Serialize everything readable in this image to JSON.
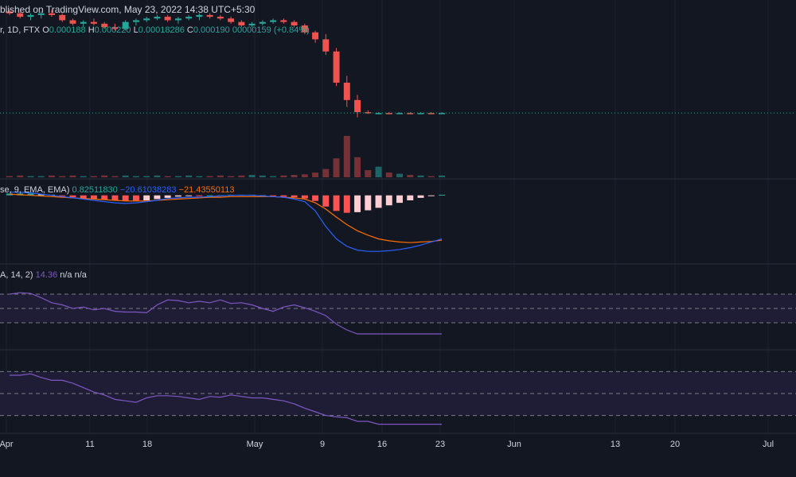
{
  "header": {
    "published": "blished on TradingView.com, May 23, 2022 14:38 UTC+5:30"
  },
  "price_legend": {
    "symbol": "r, 1D, FTX",
    "o_label": "O",
    "o_value": "0.000188",
    "h_label": "H",
    "h_value": "0.000220",
    "l_label": "L",
    "l_value": "0.00018286",
    "c_label": "C",
    "c_value": "0.000190",
    "change": "00000159 (+0.84%)"
  },
  "macd_legend": {
    "name": "se, 9, EMA, EMA)",
    "hist": "0.82511830",
    "macd": "−20.61038283",
    "signal": "−21.43550113"
  },
  "rsi_legend": {
    "name": "A, 14, 2)",
    "value": "14.36",
    "na1": "n/a",
    "na2": "n/a"
  },
  "colors": {
    "background": "#131722",
    "up": "#26a69a",
    "down": "#ef5350",
    "macd": "#2962ff",
    "signal": "#ff6d00",
    "rsi": "#7e57c2",
    "band": "#1f1d36"
  },
  "chart_data": [
    {
      "type": "candlestick",
      "x_axis_ticks": [
        "Apr",
        "11",
        "18",
        "May",
        "9",
        "16",
        "23",
        "Jun",
        "13",
        "20",
        "Jul"
      ],
      "candles": [
        {
          "o": 3,
          "h": 4,
          "l": 1,
          "c": 2
        },
        {
          "o": 2,
          "h": 3,
          "l": -1,
          "c": 0
        },
        {
          "o": 0,
          "h": 2,
          "l": -2,
          "c": 1
        },
        {
          "o": 1,
          "h": 3,
          "l": -1,
          "c": 2
        },
        {
          "o": 2,
          "h": 4,
          "l": 0,
          "c": 1
        },
        {
          "o": 1,
          "h": 2,
          "l": -3,
          "c": -2
        },
        {
          "o": -2,
          "h": -1,
          "l": -5,
          "c": -4
        },
        {
          "o": -4,
          "h": -2,
          "l": -6,
          "c": -3
        },
        {
          "o": -3,
          "h": -1,
          "l": -5,
          "c": -4
        },
        {
          "o": -4,
          "h": -3,
          "l": -7,
          "c": -6
        },
        {
          "o": -6,
          "h": -4,
          "l": -8,
          "c": -7
        },
        {
          "o": -7,
          "h": -2,
          "l": -8,
          "c": -3
        },
        {
          "o": -3,
          "h": -1,
          "l": -5,
          "c": -2
        },
        {
          "o": -2,
          "h": 0,
          "l": -3,
          "c": -1
        },
        {
          "o": -1,
          "h": 1,
          "l": -2,
          "c": 0
        },
        {
          "o": 0,
          "h": 1,
          "l": -3,
          "c": -2
        },
        {
          "o": -2,
          "h": 0,
          "l": -4,
          "c": -1
        },
        {
          "o": -1,
          "h": 1,
          "l": -2,
          "c": 0
        },
        {
          "o": 0,
          "h": 2,
          "l": -2,
          "c": 1
        },
        {
          "o": 1,
          "h": 2,
          "l": -1,
          "c": 0
        },
        {
          "o": 0,
          "h": 1,
          "l": -2,
          "c": -1
        },
        {
          "o": -1,
          "h": 0,
          "l": -4,
          "c": -3
        },
        {
          "o": -3,
          "h": -2,
          "l": -6,
          "c": -5
        },
        {
          "o": -5,
          "h": -3,
          "l": -6,
          "c": -4
        },
        {
          "o": -4,
          "h": -2,
          "l": -5,
          "c": -3
        },
        {
          "o": -3,
          "h": -1,
          "l": -4,
          "c": -2
        },
        {
          "o": -2,
          "h": -1,
          "l": -4,
          "c": -3
        },
        {
          "o": -3,
          "h": -2,
          "l": -6,
          "c": -5
        },
        {
          "o": -5,
          "h": -4,
          "l": -10,
          "c": -9
        },
        {
          "o": -9,
          "h": -8,
          "l": -15,
          "c": -13
        },
        {
          "o": -13,
          "h": -10,
          "l": -22,
          "c": -20
        },
        {
          "o": -20,
          "h": -18,
          "l": -40,
          "c": -38
        },
        {
          "o": -38,
          "h": -34,
          "l": -52,
          "c": -48
        },
        {
          "o": -48,
          "h": -45,
          "l": -58,
          "c": -55
        },
        {
          "o": -55,
          "h": -54,
          "l": -56,
          "c": -55.5
        },
        {
          "o": -55.5,
          "h": -55,
          "l": -56,
          "c": -55.5
        },
        {
          "o": -55.5,
          "h": -55,
          "l": -56,
          "c": -55.6
        },
        {
          "o": -55.6,
          "h": -55,
          "l": -56,
          "c": -55.5
        },
        {
          "o": -55.5,
          "h": -55,
          "l": -56,
          "c": -55.6
        },
        {
          "o": -55.6,
          "h": -55,
          "l": -56,
          "c": -55.5
        },
        {
          "o": -55.5,
          "h": -55,
          "l": -56,
          "c": -55.6
        },
        {
          "o": -55.6,
          "h": -55,
          "l": -56,
          "c": -55.5
        }
      ],
      "volume": [
        2,
        3,
        2,
        2,
        3,
        2,
        3,
        2,
        2,
        3,
        2,
        3,
        2,
        2,
        3,
        2,
        2,
        3,
        2,
        2,
        3,
        2,
        3,
        4,
        3,
        2,
        3,
        4,
        5,
        8,
        14,
        32,
        70,
        34,
        12,
        18,
        8,
        6,
        4,
        3,
        2,
        3
      ],
      "last_price_line": -55.5
    },
    {
      "type": "macd",
      "histogram": [
        3,
        3,
        3,
        2,
        1,
        -1,
        -3,
        -5,
        -6,
        -7,
        -8,
        -9,
        -9,
        -8,
        -6,
        -4,
        -2,
        -1,
        -1,
        0,
        0,
        1,
        1,
        1,
        0,
        -1,
        -2,
        -3,
        -5,
        -9,
        -18,
        -25,
        -28,
        -27,
        -24,
        -20,
        -16,
        -12,
        -8,
        -4,
        -1,
        1
      ],
      "macd_line": [
        5,
        5,
        4,
        2,
        0,
        -2,
        -4,
        -6,
        -8,
        -10,
        -12,
        -13,
        -12,
        -10,
        -8,
        -5,
        -4,
        -3,
        -3,
        -2,
        -1,
        0,
        0,
        0,
        -1,
        -2,
        -3,
        -6,
        -10,
        -25,
        -50,
        -70,
        -82,
        -88,
        -90,
        -90,
        -89,
        -87,
        -84,
        -80,
        -75,
        -70
      ],
      "signal_line": [
        2,
        1,
        0,
        -1,
        -2,
        -3,
        -4,
        -5,
        -6,
        -7,
        -8,
        -9,
        -9,
        -9,
        -8,
        -7,
        -6,
        -5,
        -4,
        -3,
        -3,
        -2,
        -2,
        -2,
        -2,
        -2,
        -3,
        -4,
        -6,
        -12,
        -22,
        -35,
        -47,
        -57,
        -64,
        -70,
        -73,
        -75,
        -76,
        -75,
        -74,
        -72
      ],
      "ylim": [
        -100,
        15
      ]
    },
    {
      "type": "line",
      "name": "RSI",
      "values": [
        70,
        72,
        71,
        65,
        58,
        55,
        50,
        52,
        48,
        50,
        46,
        45,
        45,
        44,
        55,
        62,
        61,
        58,
        60,
        58,
        62,
        57,
        58,
        55,
        50,
        46,
        52,
        55,
        51,
        46,
        40,
        28,
        20,
        14.4,
        14.4,
        14.4,
        14.4,
        14.4,
        14.4,
        14.4,
        14.4,
        14.4
      ],
      "ylim": [
        0,
        100
      ],
      "bands": [
        30,
        50,
        70
      ]
    },
    {
      "type": "line",
      "values": [
        75,
        75,
        77,
        72,
        68,
        68,
        64,
        58,
        52,
        48,
        42,
        40,
        38,
        44,
        47,
        47,
        46,
        44,
        42,
        46,
        45,
        48,
        46,
        44,
        44,
        42,
        40,
        36,
        30,
        25,
        20,
        18,
        17,
        12,
        12,
        8,
        8,
        8,
        8,
        8,
        8,
        8
      ],
      "ylim": [
        0,
        100
      ],
      "bands": [
        20,
        50,
        80
      ]
    }
  ]
}
